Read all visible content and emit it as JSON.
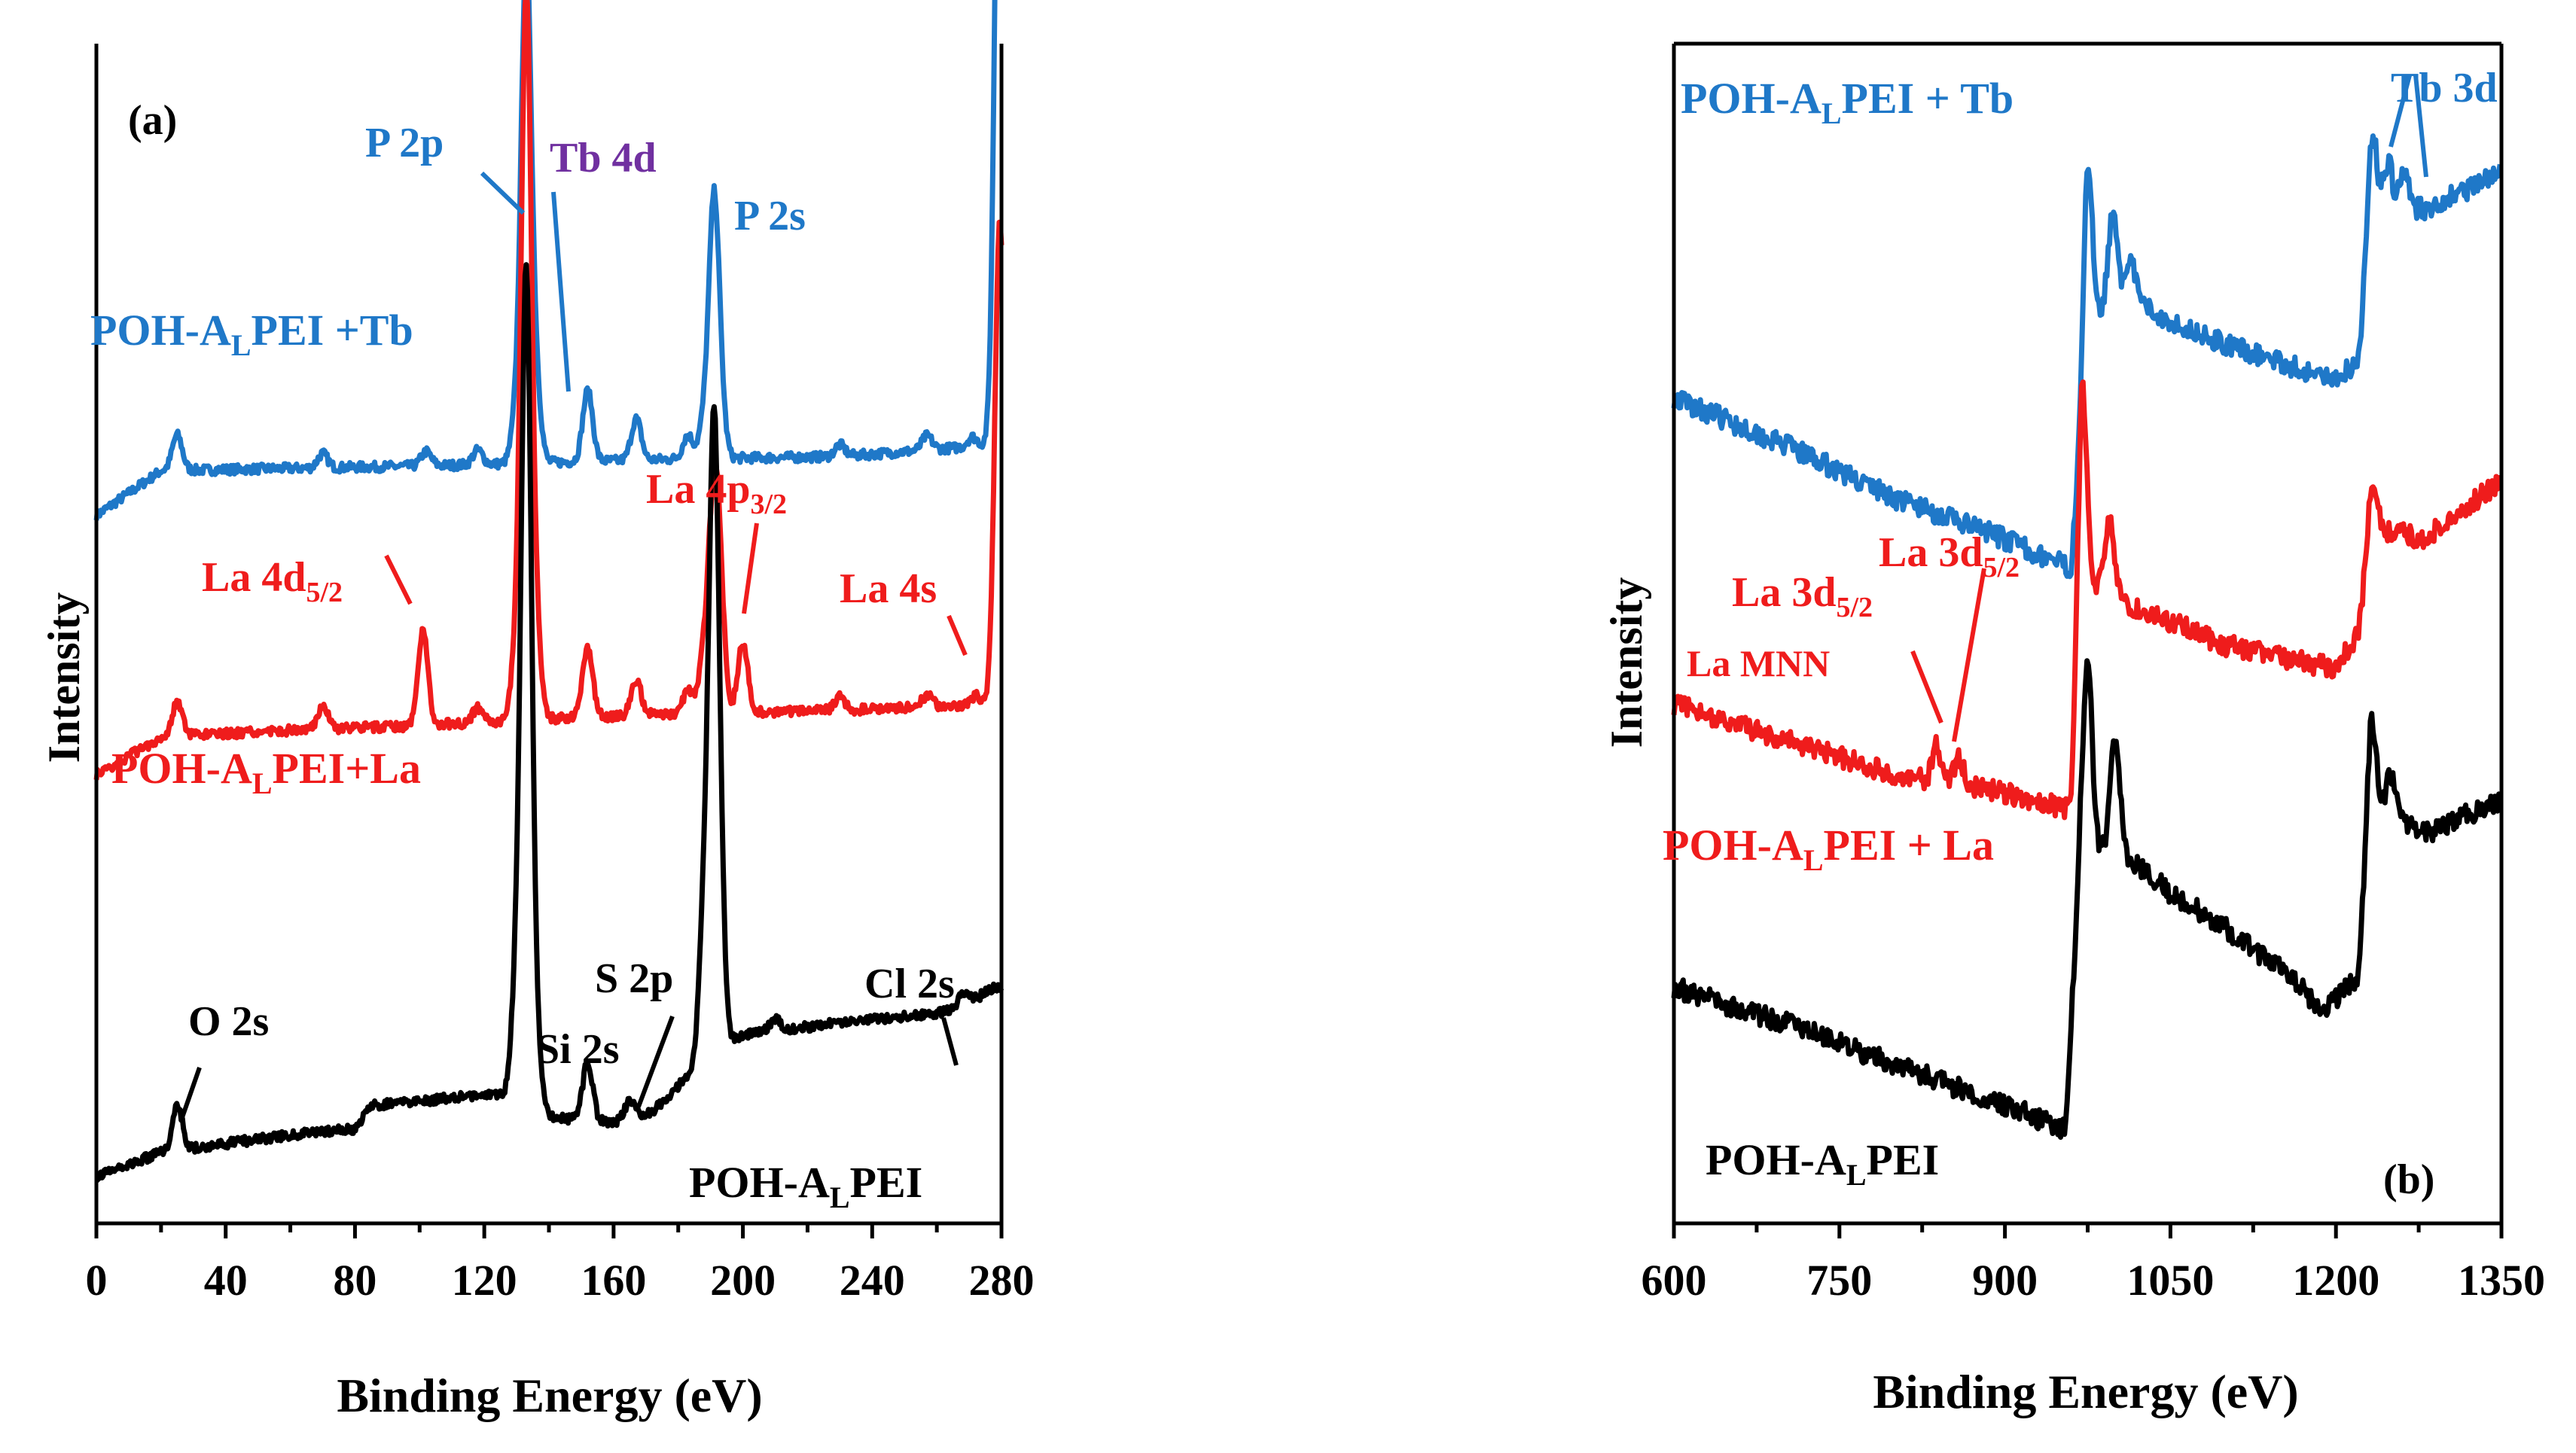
{
  "chart_data": [
    {
      "type": "line",
      "panel_label": "(a)",
      "xlabel": "Binding Energy (eV)",
      "ylabel": "Intensity",
      "xlim": [
        0,
        280
      ],
      "xticks": [
        0,
        40,
        80,
        120,
        160,
        200,
        240,
        280
      ],
      "yticks_shown": false,
      "series": [
        {
          "name": "POH-ALPEI +Tb",
          "label_base": "POH-A",
          "label_sub": "L",
          "label_tail": "PEI +Tb",
          "color": "#1f78c8",
          "baseline": [
            [
              0,
              0.6
            ],
            [
              20,
              0.638
            ],
            [
              60,
              0.64
            ],
            [
              100,
              0.642
            ],
            [
              140,
              0.645
            ],
            [
              180,
              0.648
            ],
            [
              230,
              0.65
            ],
            [
              278,
              0.66
            ]
          ],
          "peaks": [
            [
              25,
              0.03
            ],
            [
              70,
              0.012
            ],
            [
              102,
              0.012
            ],
            [
              118,
              0.012
            ],
            [
              130,
              0.04
            ],
            [
              133,
              0.42
            ],
            [
              136,
              0.06
            ],
            [
              152,
              0.06
            ],
            [
              167,
              0.035
            ],
            [
              183,
              0.02
            ],
            [
              188,
              0.03
            ],
            [
              191,
              0.205
            ],
            [
              193,
              0.04
            ],
            [
              230,
              0.01
            ],
            [
              257,
              0.012
            ],
            [
              271,
              0.008
            ],
            [
              279.5,
              0.64
            ]
          ]
        },
        {
          "name": "POH-ALPEI+La",
          "label_base": "POH-A",
          "label_sub": "L",
          "label_tail": "PEI+La",
          "color": "#ef1c1c",
          "baseline": [
            [
              0,
              0.38
            ],
            [
              20,
              0.412
            ],
            [
              60,
              0.418
            ],
            [
              100,
              0.422
            ],
            [
              140,
              0.428
            ],
            [
              180,
              0.432
            ],
            [
              230,
              0.435
            ],
            [
              278,
              0.44
            ]
          ],
          "peaks": [
            [
              25,
              0.03
            ],
            [
              70,
              0.02
            ],
            [
              101,
              0.08
            ],
            [
              118,
              0.012
            ],
            [
              130,
              0.06
            ],
            [
              133,
              0.6
            ],
            [
              136,
              0.07
            ],
            [
              152,
              0.06
            ],
            [
              167,
              0.03
            ],
            [
              183,
              0.02
            ],
            [
              188,
              0.05
            ],
            [
              191,
              0.17
            ],
            [
              193,
              0.08
            ],
            [
              200,
              0.06
            ],
            [
              230,
              0.012
            ],
            [
              257,
              0.01
            ],
            [
              272,
              0.008
            ],
            [
              279.5,
              0.41
            ]
          ]
        },
        {
          "name": "POH-ALPEI",
          "label_base": "POH-A",
          "label_sub": "L",
          "label_tail": "PEI",
          "color": "#000000",
          "baseline": [
            [
              0,
              0.04
            ],
            [
              20,
              0.06
            ],
            [
              60,
              0.075
            ],
            [
              80,
              0.08
            ],
            [
              85,
              0.1
            ],
            [
              125,
              0.11
            ],
            [
              140,
              0.09
            ],
            [
              160,
              0.085
            ],
            [
              172,
              0.095
            ],
            [
              185,
              0.13
            ],
            [
              200,
              0.16
            ],
            [
              230,
              0.17
            ],
            [
              265,
              0.18
            ],
            [
              278,
              0.2
            ]
          ],
          "peaks": [
            [
              25,
              0.04
            ],
            [
              130,
              0.1
            ],
            [
              133,
              0.69
            ],
            [
              136,
              0.06
            ],
            [
              152,
              0.05
            ],
            [
              165,
              0.015
            ],
            [
              188,
              0.12
            ],
            [
              191,
              0.5
            ],
            [
              193,
              0.08
            ],
            [
              210,
              0.01
            ],
            [
              268,
              0.01
            ]
          ]
        }
      ],
      "annotations": [
        {
          "text": "P 2p",
          "color": "#1f78c8"
        },
        {
          "text": "Tb 4d",
          "color": "#7030a0"
        },
        {
          "text": "P 2s",
          "color": "#1f78c8"
        },
        {
          "text": "La 4d",
          "sub": "5/2",
          "color": "#ef1c1c"
        },
        {
          "text": "La 4p",
          "sub": "3/2",
          "color": "#ef1c1c"
        },
        {
          "text": "La 4s",
          "color": "#ef1c1c"
        },
        {
          "text": "O 2s",
          "color": "#000000"
        },
        {
          "text": "Si 2s",
          "color": "#000000"
        },
        {
          "text": "S 2p",
          "color": "#000000"
        },
        {
          "text": "Cl 2s",
          "color": "#000000"
        }
      ]
    },
    {
      "type": "line",
      "panel_label": "(b)",
      "xlabel": "Binding Energy (eV)",
      "ylabel": "Intensity",
      "xlim": [
        600,
        1350
      ],
      "xticks": [
        600,
        750,
        900,
        1050,
        1200,
        1350
      ],
      "yticks_shown": false,
      "series": [
        {
          "name": "POH-ALPEI + Tb",
          "label_base": "POH-A",
          "label_sub": "L",
          "label_tail": "PEI + Tb",
          "color": "#1f78c8",
          "baseline": [
            [
              600,
              0.7
            ],
            [
              700,
              0.66
            ],
            [
              800,
              0.615
            ],
            [
              900,
              0.58
            ],
            [
              960,
              0.555
            ],
            [
              975,
              0.76
            ],
            [
              1000,
              0.79
            ],
            [
              1050,
              0.765
            ],
            [
              1100,
              0.745
            ],
            [
              1150,
              0.73
            ],
            [
              1195,
              0.715
            ],
            [
              1220,
              0.73
            ],
            [
              1235,
              0.86
            ],
            [
              1280,
              0.86
            ],
            [
              1350,
              0.89
            ]
          ],
          "peaks": [
            [
              975,
              0.14
            ],
            [
              998,
              0.07
            ],
            [
              1015,
              0.03
            ],
            [
              1232,
              0.08
            ],
            [
              1247,
              0.04
            ],
            [
              1262,
              0.03
            ]
          ]
        },
        {
          "name": "POH-ALPEI + La",
          "label_base": "POH-A",
          "label_sub": "L",
          "label_tail": "PEI + La",
          "color": "#ef1c1c",
          "baseline": [
            [
              600,
              0.44
            ],
            [
              700,
              0.41
            ],
            [
              800,
              0.38
            ],
            [
              900,
              0.365
            ],
            [
              960,
              0.35
            ],
            [
              970,
              0.55
            ],
            [
              1000,
              0.53
            ],
            [
              1050,
              0.51
            ],
            [
              1100,
              0.49
            ],
            [
              1150,
              0.48
            ],
            [
              1200,
              0.47
            ],
            [
              1220,
              0.5
            ],
            [
              1235,
              0.59
            ],
            [
              1280,
              0.58
            ],
            [
              1350,
              0.63
            ]
          ],
          "peaks": [
            [
              970,
              0.16
            ],
            [
              995,
              0.06
            ],
            [
              838,
              0.03
            ],
            [
              858,
              0.025
            ],
            [
              1232,
              0.05
            ]
          ]
        },
        {
          "name": "POH-ALPEI",
          "label_base": "POH-A",
          "label_sub": "L",
          "label_tail": "PEI",
          "color": "#000000",
          "baseline": [
            [
              600,
              0.2
            ],
            [
              700,
              0.17
            ],
            [
              800,
              0.135
            ],
            [
              900,
              0.1
            ],
            [
              955,
              0.08
            ],
            [
              968,
              0.31
            ],
            [
              1000,
              0.32
            ],
            [
              1050,
              0.28
            ],
            [
              1100,
              0.25
            ],
            [
              1150,
              0.215
            ],
            [
              1190,
              0.18
            ],
            [
              1220,
              0.21
            ],
            [
              1232,
              0.36
            ],
            [
              1280,
              0.33
            ],
            [
              1350,
              0.36
            ]
          ],
          "peaks": [
            [
              975,
              0.16
            ],
            [
              1000,
              0.09
            ],
            [
              1232,
              0.07
            ],
            [
              1250,
              0.03
            ]
          ]
        }
      ],
      "annotations": [
        {
          "text": "Tb 3d",
          "color": "#1f78c8"
        },
        {
          "text": "La 3d",
          "sub": "5/2",
          "color": "#ef1c1c",
          "id": "upper"
        },
        {
          "text": "La 3d",
          "sub": "5/2",
          "color": "#ef1c1c",
          "id": "lower"
        },
        {
          "text": "La MNN",
          "color": "#ef1c1c"
        }
      ]
    }
  ]
}
